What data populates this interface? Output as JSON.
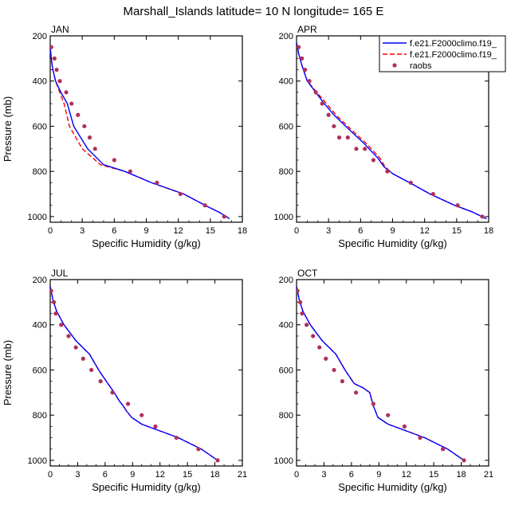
{
  "title": "Marshall_Islands  latitude= 10 N longitude= 165 E",
  "legend": [
    {
      "label": "f.e21.F2000climo.f19_",
      "color": "#0000ff",
      "style": "solid"
    },
    {
      "label": "f.e21.F2000climo.f19_",
      "color": "#ff0000",
      "style": "dashed"
    },
    {
      "label": "raobs",
      "color": "#b0305a",
      "style": "marker"
    }
  ],
  "chart_data": [
    {
      "type": "line",
      "panel": "JAN",
      "xlabel": "Specific Humidity (g/kg)",
      "ylabel": "Pressure (mb)",
      "xlim": [
        0,
        18
      ],
      "ylim": [
        1025,
        200
      ],
      "xticks": [
        "0",
        "3",
        "6",
        "9",
        "12",
        "15",
        "18"
      ],
      "xtick_values": [
        0,
        3,
        6,
        9,
        12,
        15,
        18
      ],
      "yticks": [
        "200",
        "400",
        "600",
        "800",
        "1000"
      ],
      "ytick_values": [
        200,
        400,
        600,
        800,
        1000
      ],
      "series": [
        {
          "name": "f.e21.F2000climo.f19_ (blue)",
          "x": [
            0.0,
            0.1,
            0.25,
            0.5,
            1.0,
            1.6,
            2.2,
            3.5,
            5.0,
            7.0,
            9.5,
            12.5,
            14.5,
            15.8,
            16.5,
            16.8
          ],
          "y": [
            250,
            300,
            350,
            400,
            450,
            500,
            600,
            700,
            770,
            800,
            850,
            900,
            950,
            980,
            1000,
            1010
          ]
        },
        {
          "name": "f.e21.F2000climo.f19_ (red)",
          "x": [
            0.0,
            0.1,
            0.25,
            0.5,
            0.9,
            1.3,
            1.8,
            3.0,
            4.7,
            7.0,
            9.5,
            12.5,
            14.5,
            15.8,
            16.5,
            16.8
          ],
          "y": [
            250,
            300,
            350,
            400,
            450,
            500,
            600,
            700,
            770,
            800,
            850,
            900,
            950,
            980,
            1000,
            1010
          ]
        },
        {
          "name": "raobs",
          "x": [
            0.1,
            0.4,
            0.6,
            0.9,
            1.5,
            2.0,
            2.6,
            3.2,
            3.7,
            4.2,
            6.0,
            7.5,
            10.0,
            12.2,
            14.5,
            16.3
          ],
          "y": [
            250,
            300,
            350,
            400,
            450,
            500,
            550,
            600,
            650,
            700,
            750,
            800,
            850,
            900,
            950,
            1000
          ]
        }
      ]
    },
    {
      "type": "line",
      "panel": "APR",
      "xlabel": "Specific Humidity (g/kg)",
      "ylabel": "",
      "xlim": [
        0,
        18
      ],
      "ylim": [
        1025,
        200
      ],
      "xticks": [
        "0",
        "3",
        "6",
        "9",
        "12",
        "15",
        "18"
      ],
      "xtick_values": [
        0,
        3,
        6,
        9,
        12,
        15,
        18
      ],
      "yticks": [
        "200",
        "400",
        "600",
        "800",
        "1000"
      ],
      "ytick_values": [
        200,
        400,
        600,
        800,
        1000
      ],
      "series": [
        {
          "name": "f.e21.F2000climo.f19_ (blue)",
          "x": [
            0.0,
            0.2,
            0.5,
            1.0,
            1.8,
            2.6,
            3.5,
            4.6,
            5.5,
            6.4,
            7.0,
            7.6,
            8.2,
            9.0,
            10.6,
            12.5,
            14.8,
            16.5,
            17.8
          ],
          "y": [
            230,
            280,
            330,
            400,
            450,
            500,
            550,
            600,
            640,
            680,
            710,
            740,
            780,
            810,
            850,
            900,
            950,
            980,
            1010
          ]
        },
        {
          "name": "f.e21.F2000climo.f19_ (red)",
          "x": [
            0.0,
            0.2,
            0.5,
            1.0,
            1.9,
            2.8,
            3.7,
            4.8,
            5.7,
            6.6,
            7.2,
            7.8,
            8.3,
            9.0,
            10.6,
            12.5,
            14.8,
            16.5,
            17.8
          ],
          "y": [
            230,
            280,
            330,
            400,
            450,
            500,
            550,
            600,
            640,
            680,
            710,
            740,
            780,
            810,
            850,
            900,
            950,
            980,
            1010
          ]
        },
        {
          "name": "raobs",
          "x": [
            0.2,
            0.5,
            0.8,
            1.2,
            1.8,
            2.4,
            3.0,
            3.5,
            4.0,
            4.8,
            5.6,
            6.4,
            7.2,
            8.5,
            10.7,
            12.8,
            15.1,
            17.4
          ],
          "y": [
            250,
            300,
            350,
            400,
            450,
            500,
            550,
            600,
            650,
            650,
            700,
            700,
            750,
            800,
            850,
            900,
            950,
            1000
          ]
        }
      ]
    },
    {
      "type": "line",
      "panel": "JUL",
      "xlabel": "Specific Humidity (g/kg)",
      "ylabel": "Pressure (mb)",
      "xlim": [
        0,
        21
      ],
      "ylim": [
        1025,
        200
      ],
      "xticks": [
        "0",
        "3",
        "6",
        "9",
        "12",
        "15",
        "18",
        "21"
      ],
      "xtick_values": [
        0,
        3,
        6,
        9,
        12,
        15,
        18,
        21
      ],
      "yticks": [
        "200",
        "400",
        "600",
        "800",
        "1000"
      ],
      "ytick_values": [
        200,
        400,
        600,
        800,
        1000
      ],
      "series": [
        {
          "name": "f.e21.F2000climo.f19_ (blue)",
          "x": [
            0.0,
            0.3,
            0.7,
            1.5,
            2.8,
            4.3,
            5.3,
            6.3,
            7.0,
            7.6,
            8.0,
            8.3,
            8.9,
            10.0,
            12.0,
            14.0,
            16.5,
            18.3
          ],
          "y": [
            230,
            290,
            340,
            400,
            470,
            530,
            600,
            660,
            700,
            740,
            760,
            780,
            810,
            840,
            870,
            900,
            950,
            1000
          ]
        },
        {
          "name": "f.e21.F2000climo.f19_ (red)",
          "x": [
            0.0,
            0.3,
            0.7,
            1.5,
            2.8,
            4.3,
            5.3,
            6.3,
            7.0,
            7.6,
            8.0,
            8.3,
            8.9,
            10.0,
            12.0,
            14.0,
            16.5,
            18.3
          ],
          "y": [
            230,
            290,
            340,
            400,
            470,
            530,
            600,
            660,
            700,
            740,
            760,
            780,
            810,
            840,
            870,
            900,
            950,
            1000
          ]
        },
        {
          "name": "raobs",
          "x": [
            0.1,
            0.4,
            0.6,
            1.2,
            2.0,
            2.8,
            3.6,
            4.5,
            5.5,
            6.8,
            8.5,
            10.0,
            11.5,
            13.8,
            16.2,
            18.3
          ],
          "y": [
            250,
            300,
            350,
            400,
            450,
            500,
            550,
            600,
            650,
            700,
            750,
            800,
            850,
            900,
            950,
            1000
          ]
        }
      ]
    },
    {
      "type": "line",
      "panel": "OCT",
      "xlabel": "Specific Humidity (g/kg)",
      "ylabel": "",
      "xlim": [
        0,
        21
      ],
      "ylim": [
        1025,
        200
      ],
      "xticks": [
        "0",
        "3",
        "6",
        "9",
        "12",
        "15",
        "18",
        "21"
      ],
      "xtick_values": [
        0,
        3,
        6,
        9,
        12,
        15,
        18,
        21
      ],
      "yticks": [
        "200",
        "400",
        "600",
        "800",
        "1000"
      ],
      "ytick_values": [
        200,
        400,
        600,
        800,
        1000
      ],
      "series": [
        {
          "name": "f.e21.F2000climo.f19_ (blue)",
          "x": [
            0.0,
            0.3,
            0.7,
            1.5,
            2.8,
            4.3,
            5.3,
            6.3,
            7.3,
            8.0,
            8.4,
            8.9,
            10.0,
            12.0,
            14.0,
            16.5,
            18.3
          ],
          "y": [
            230,
            290,
            340,
            400,
            470,
            530,
            600,
            660,
            680,
            700,
            760,
            810,
            840,
            870,
            900,
            950,
            1000
          ]
        },
        {
          "name": "f.e21.F2000climo.f19_ (red)",
          "x": [
            0.0,
            0.3,
            0.7,
            1.5,
            2.8,
            4.3,
            5.3,
            6.3,
            7.3,
            8.0,
            8.4,
            8.9,
            10.0,
            12.0,
            14.0,
            16.5,
            18.3
          ],
          "y": [
            230,
            290,
            340,
            400,
            470,
            530,
            600,
            660,
            680,
            700,
            760,
            810,
            840,
            870,
            900,
            950,
            1000
          ]
        },
        {
          "name": "raobs",
          "x": [
            0.1,
            0.4,
            0.6,
            1.1,
            1.8,
            2.5,
            3.2,
            4.1,
            5.0,
            6.5,
            8.4,
            10.0,
            11.8,
            13.5,
            16.0,
            18.3
          ],
          "y": [
            250,
            300,
            350,
            400,
            450,
            500,
            550,
            600,
            650,
            700,
            750,
            800,
            850,
            900,
            950,
            1000
          ]
        }
      ]
    }
  ]
}
